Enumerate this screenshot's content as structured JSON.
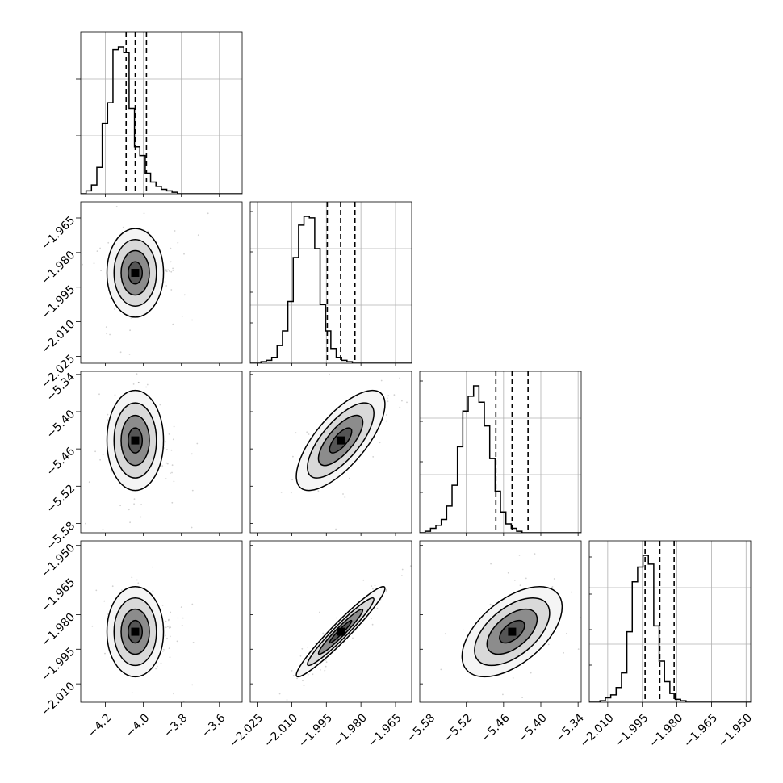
{
  "chart_data": {
    "type": "corner",
    "grid": true,
    "parameters": [
      "",
      "",
      "",
      ""
    ],
    "ranges": [
      [
        -4.33,
        -3.48
      ],
      [
        -2.028,
        -1.958
      ],
      [
        -5.595,
        -5.335
      ],
      [
        -2.018,
        -1.948
      ]
    ],
    "x_ticks": [
      {
        "values": [
          -4.2,
          -4.0,
          -3.8,
          -3.6
        ],
        "labels": [
          "−4.2",
          "−4.0",
          "−3.8",
          "−3.6"
        ]
      },
      {
        "values": [
          -2.025,
          -2.01,
          -1.995,
          -1.98,
          -1.965
        ],
        "labels": [
          "−2.025",
          "−2.010",
          "−1.995",
          "−1.980",
          "−1.965"
        ]
      },
      {
        "values": [
          -5.58,
          -5.52,
          -5.46,
          -5.4,
          -5.34
        ],
        "labels": [
          "−5.58",
          "−5.52",
          "−5.46",
          "−5.40",
          "−5.34"
        ]
      },
      {
        "values": [
          -2.01,
          -1.995,
          -1.98,
          -1.965,
          -1.95
        ],
        "labels": [
          "−2.010",
          "−1.995",
          "−1.980",
          "−1.965",
          "−1.950"
        ]
      }
    ],
    "y_ticks": [
      null,
      {
        "values": [
          -1.965,
          -1.98,
          -1.995,
          -2.01,
          -2.025
        ],
        "labels": [
          "−1.965",
          "−1.980",
          "−1.995",
          "−2.010",
          "−2.025"
        ]
      },
      {
        "values": [
          -5.34,
          -5.4,
          -5.46,
          -5.52,
          -5.58
        ],
        "labels": [
          "−5.34",
          "−5.40",
          "−5.46",
          "−5.52",
          "−5.58"
        ]
      },
      {
        "values": [
          -1.95,
          -1.965,
          -1.98,
          -1.995,
          -2.01
        ],
        "labels": [
          "−1.950",
          "−1.965",
          "−1.980",
          "−1.995",
          "−2.010"
        ]
      }
    ],
    "quantiles": [
      [
        -4.091,
        -4.043,
        -3.984
      ],
      [
        -1.9946,
        -1.9888,
        -1.9826
      ],
      [
        -5.4724,
        -5.4463,
        -5.4206
      ],
      [
        -1.9938,
        -1.9874,
        -1.9812
      ]
    ],
    "histograms": [
      {
        "edges_start": -4.33,
        "bin_width": 0.0283,
        "counts": [
          0,
          2,
          6,
          18,
          48,
          62,
          98,
          100,
          96,
          58,
          32,
          26,
          14,
          8,
          5,
          3,
          2,
          1,
          0,
          0,
          0,
          0,
          0,
          0,
          0,
          0,
          0,
          0,
          0,
          0
        ]
      },
      {
        "edges_start": -2.028,
        "bin_width": 0.00233,
        "counts": [
          0,
          0,
          1,
          2,
          4,
          12,
          22,
          42,
          72,
          94,
          100,
          99,
          78,
          40,
          22,
          10,
          4,
          2,
          1,
          0,
          0,
          0,
          0,
          0,
          0,
          0,
          0,
          0,
          0,
          0
        ]
      },
      {
        "edges_start": -5.595,
        "bin_width": 0.00867,
        "counts": [
          0,
          1,
          3,
          5,
          9,
          18,
          32,
          58,
          82,
          92,
          99,
          88,
          72,
          50,
          28,
          14,
          6,
          3,
          1,
          0,
          0,
          0,
          0,
          0,
          0,
          0,
          0,
          0,
          0,
          0
        ]
      },
      {
        "edges_start": -2.018,
        "bin_width": 0.00233,
        "counts": [
          0,
          0,
          1,
          3,
          5,
          10,
          20,
          48,
          82,
          92,
          100,
          94,
          52,
          28,
          14,
          6,
          2,
          1,
          0,
          0,
          0,
          0,
          0,
          0,
          0,
          0,
          0,
          0,
          0,
          0
        ]
      }
    ],
    "pairs": [
      {
        "x": 0,
        "y": 1,
        "center": [
          -4.043,
          -1.9888
        ],
        "sd": [
          0.048,
          0.0062
        ],
        "corr": 0.0
      },
      {
        "x": 0,
        "y": 2,
        "center": [
          -4.043,
          -5.4463
        ],
        "sd": [
          0.048,
          0.026
        ],
        "corr": 0.0
      },
      {
        "x": 1,
        "y": 2,
        "center": [
          -1.9888,
          -5.4463
        ],
        "sd": [
          0.0062,
          0.026
        ],
        "corr": 0.72
      },
      {
        "x": 0,
        "y": 3,
        "center": [
          -4.043,
          -1.9874
        ],
        "sd": [
          0.048,
          0.0063
        ],
        "corr": 0.0
      },
      {
        "x": 1,
        "y": 3,
        "center": [
          -1.9888,
          -1.9874
        ],
        "sd": [
          0.0062,
          0.0063
        ],
        "corr": 0.96
      },
      {
        "x": 2,
        "y": 3,
        "center": [
          -5.4463,
          -1.9874
        ],
        "sd": [
          0.026,
          0.0063
        ],
        "corr": 0.55
      }
    ],
    "contour_levels_sigma": [
      0.5,
      1.0,
      1.5,
      2.0
    ]
  }
}
